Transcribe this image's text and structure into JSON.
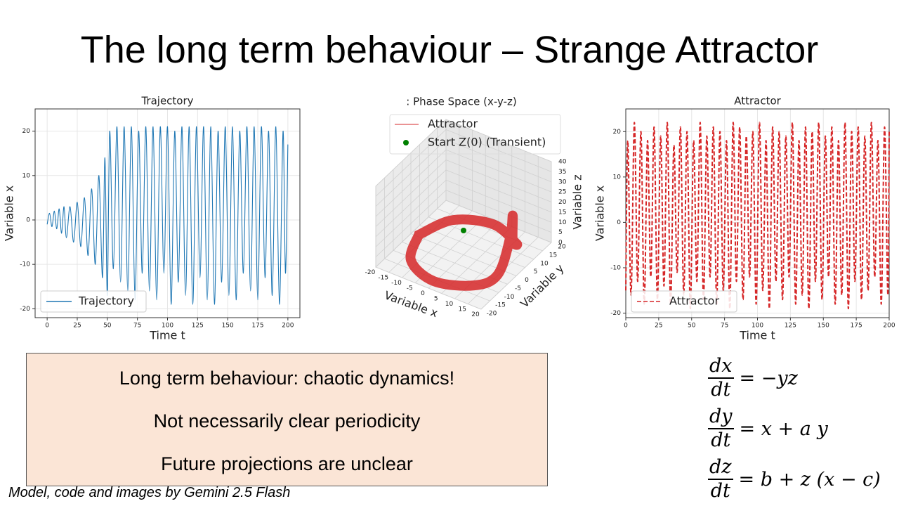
{
  "title": "The long term behaviour – Strange Attractor",
  "chart_data": [
    {
      "type": "line",
      "title": "Trajectory",
      "xlabel": "Time t",
      "ylabel": "Variable x",
      "x": [
        0,
        2,
        4,
        6,
        8,
        10,
        12,
        14,
        16,
        19,
        22,
        25,
        28,
        31,
        34,
        37,
        40,
        43,
        46,
        48,
        50,
        52,
        55,
        58,
        61,
        64,
        67,
        70,
        73,
        76,
        79,
        82,
        85,
        88,
        91,
        94,
        97,
        100,
        103,
        106,
        109,
        112,
        115,
        118,
        121,
        124,
        127,
        130,
        133,
        136,
        139,
        142,
        145,
        148,
        151,
        154,
        157,
        160,
        163,
        166,
        169,
        172,
        175,
        178,
        181,
        184,
        187,
        190,
        193,
        196,
        198,
        200
      ],
      "series": [
        {
          "name": "Trajectory",
          "color": "#1f77b4",
          "linestyle": "solid",
          "values": [
            -1,
            1.5,
            -1.5,
            2,
            -2,
            2.5,
            -3,
            3,
            -4,
            3,
            -5,
            4,
            -6,
            5,
            -8,
            7,
            -10,
            10,
            -13,
            14,
            -17,
            20,
            -11,
            21,
            -14,
            21,
            -16,
            21,
            -18,
            20,
            -12,
            21,
            -16,
            21,
            -18,
            21,
            -12,
            21,
            -19,
            20,
            -14,
            21,
            -17,
            21,
            -19,
            21,
            -13,
            21,
            -18,
            21,
            -19,
            20,
            -14,
            21,
            -17,
            21,
            -18,
            20,
            -12,
            21,
            -16,
            21,
            -18,
            21,
            -13,
            20,
            -17,
            21,
            -19,
            20,
            -12,
            17
          ]
        }
      ],
      "xlim": [
        -10,
        210
      ],
      "xticks": [
        0,
        25,
        50,
        75,
        100,
        125,
        150,
        175,
        200
      ],
      "ylim": [
        -22,
        25
      ],
      "yticks": [
        -20,
        -10,
        0,
        10,
        20
      ],
      "grid": true,
      "legend": "lower left"
    },
    {
      "type": "line3d",
      "title": ": Phase Space (x-y-z)",
      "xlabel": "Variable x",
      "ylabel": "Variable y",
      "zlabel": "Variable z",
      "xlim": [
        -20,
        20
      ],
      "xticks": [
        -20,
        -15,
        -10,
        -5,
        0,
        5,
        10,
        15,
        20
      ],
      "ylim": [
        -20,
        20
      ],
      "yticks": [
        -20,
        -15,
        -10,
        -5,
        0,
        5,
        10,
        15,
        20
      ],
      "zlim": [
        0,
        40
      ],
      "zticks": [
        0,
        5,
        10,
        15,
        20,
        25,
        30,
        35,
        40
      ],
      "grid": true,
      "legend": "upper center",
      "series": [
        {
          "name": "Attractor",
          "color": "#d62728",
          "marker": "none",
          "x": [
            -17,
            -12,
            0,
            12,
            16,
            18,
            19,
            17,
            12,
            0,
            -12,
            -17
          ],
          "y": [
            0,
            12,
            17,
            12,
            4,
            1,
            -2,
            -6,
            -12,
            -17,
            -12,
            0
          ],
          "z": [
            1,
            1,
            1,
            2,
            12,
            28,
            20,
            4,
            1,
            1,
            1,
            1
          ]
        },
        {
          "name": "Start Z(0) (Transient)",
          "color": "#008000",
          "marker": "dot",
          "x": [
            0
          ],
          "y": [
            0
          ],
          "z": [
            12
          ]
        }
      ]
    },
    {
      "type": "line",
      "title": "Attractor",
      "xlabel": "Time t",
      "ylabel": "Variable x",
      "x": [
        0,
        1.5,
        4,
        6.5,
        9,
        11.5,
        14,
        16.5,
        19,
        21.5,
        24,
        26.5,
        29,
        31.5,
        34,
        36.5,
        39,
        41.5,
        44,
        46.5,
        49,
        51.5,
        54,
        56.5,
        59,
        61.5,
        64,
        66.5,
        69,
        71.5,
        74,
        76.5,
        79,
        81.5,
        84,
        86.5,
        89,
        91.5,
        94,
        96.5,
        99,
        101.5,
        104,
        106.5,
        109,
        111.5,
        114,
        116.5,
        119,
        121.5,
        124,
        126.5,
        129,
        131.5,
        134,
        136.5,
        139,
        141.5,
        144,
        146.5,
        149,
        151.5,
        154,
        156.5,
        159,
        161.5,
        164,
        166.5,
        169,
        171.5,
        174,
        176.5,
        179,
        181.5,
        184,
        186.5,
        189,
        191.5,
        194,
        196.5,
        199,
        200
      ],
      "series": [
        {
          "name": "Attractor",
          "color": "#d62728",
          "linestyle": "dashed",
          "values": [
            -15,
            18,
            -16,
            22,
            -13,
            20,
            -18,
            18,
            -12,
            21,
            -17,
            19,
            -14,
            22,
            -18,
            17,
            -11,
            21,
            -16,
            20,
            -19,
            18,
            -13,
            22,
            -17,
            19,
            -12,
            21,
            -18,
            20,
            -15,
            18,
            -19,
            22,
            -13,
            21,
            -17,
            19,
            -12,
            20,
            -18,
            22,
            -15,
            18,
            -19,
            21,
            -13,
            20,
            -17,
            19,
            -12,
            22,
            -18,
            18,
            -16,
            21,
            -19,
            20,
            -13,
            22,
            -17,
            19,
            -12,
            21,
            -18,
            18,
            -16,
            22,
            -19,
            20,
            -13,
            21,
            -17,
            19,
            -15,
            22,
            -12,
            18,
            -18,
            21,
            -16,
            20
          ]
        }
      ],
      "xlim": [
        0,
        200
      ],
      "xticks": [
        0,
        25,
        50,
        75,
        100,
        125,
        150,
        175,
        200
      ],
      "ylim": [
        -21,
        25
      ],
      "yticks": [
        -20,
        -10,
        0,
        10,
        20
      ],
      "grid": true,
      "legend": "lower left"
    }
  ],
  "notes": [
    "Long term behaviour: chaotic dynamics!",
    "Not necessarily clear periodicity",
    "Future projections are unclear"
  ],
  "credit": "Model, code and images by Gemini 2.5 Flash",
  "equations": [
    {
      "num": "dx",
      "den": "dt",
      "rhs": "= −yz"
    },
    {
      "num": "dy",
      "den": "dt",
      "rhs": "= x + a y"
    },
    {
      "num": "dz",
      "den": "dt",
      "rhs": "= b + z (x − c)"
    }
  ]
}
